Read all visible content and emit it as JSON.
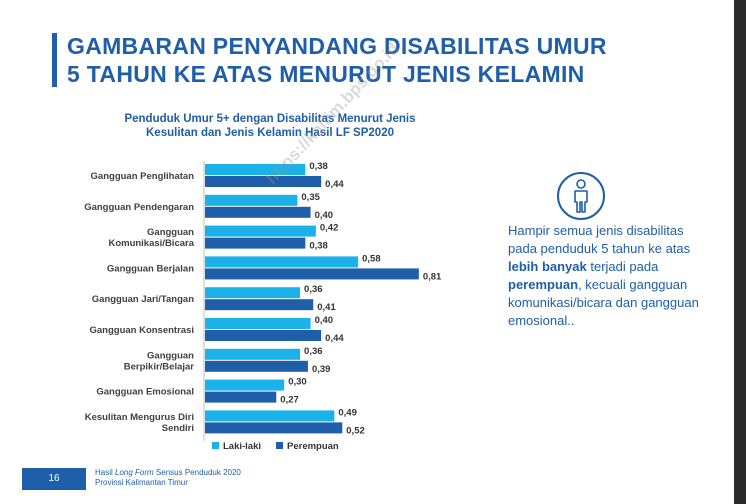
{
  "page": {
    "title_line1": "GAMBARAN PENYANDANG DISABILITAS UMUR",
    "title_line2": "5 TAHUN KE ATAS MENURUT JENIS KELAMIN",
    "watermark": "https://kaltim.bps.go.id",
    "info_text": {
      "part1": "Hampir semua jenis disabilitas pada penduduk 5 tahun ke atas ",
      "bold1": "lebih banyak",
      "part2": " terjadi pada ",
      "bold2": "perempuan",
      "part3": ", kecuali gangguan komunikasi/bicara dan gangguan emosional.."
    },
    "footer": {
      "page_number": "16",
      "line1_pre": "Hasil ",
      "line1_italic": "Long Form",
      "line1_post": " Sensus Penduduk 2020",
      "line2": "Provinsi Kalimantan Timur"
    },
    "icon": "person-icon"
  },
  "chart_data": {
    "type": "bar",
    "orientation": "horizontal",
    "title_line1": "Penduduk Umur 5+ dengan Disabilitas Menurut Jenis",
    "title_line2": "Kesulitan  dan Jenis Kelamin Hasil LF SP2020",
    "categories": [
      [
        "Gangguan Penglihatan"
      ],
      [
        "Gangguan Pendengaran"
      ],
      [
        "Gangguan",
        "Komunikasi/Bicara"
      ],
      [
        "Gangguan Berjalan"
      ],
      [
        "Gangguan Jari/Tangan"
      ],
      [
        "Gangguan Konsentrasi"
      ],
      [
        "Gangguan",
        "Berpikir/Belajar"
      ],
      [
        "Gangguan Emosional"
      ],
      [
        "Kesulitan Mengurus Diri",
        "Sendiri"
      ]
    ],
    "series": [
      {
        "name": "Laki-laki",
        "color": "#1ab2e8",
        "values": [
          0.38,
          0.35,
          0.42,
          0.58,
          0.36,
          0.4,
          0.36,
          0.3,
          0.49
        ],
        "labels": [
          "0,38",
          "0,35",
          "0,42",
          "0,58",
          "0,36",
          "0,40",
          "0,36",
          "0,30",
          "0,49"
        ]
      },
      {
        "name": "Perempuan",
        "color": "#1f5ea8",
        "values": [
          0.44,
          0.4,
          0.38,
          0.81,
          0.41,
          0.44,
          0.39,
          0.27,
          0.52
        ],
        "labels": [
          "0,44",
          "0,40",
          "0,38",
          "0,81",
          "0,41",
          "0,44",
          "0,39",
          "0,27",
          "0,52"
        ]
      }
    ],
    "legend_position": "bottom",
    "grid": false
  }
}
